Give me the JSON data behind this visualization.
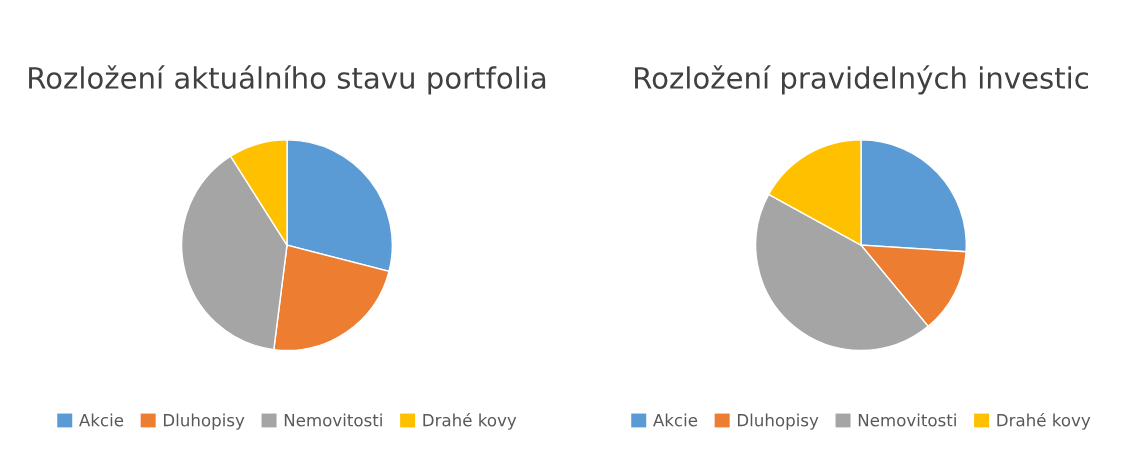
{
  "chart_data": [
    {
      "type": "pie",
      "title": "Rozložení aktuálního stavu portfolia",
      "categories": [
        "Akcie",
        "Dluhopisy",
        "Nemovitosti",
        "Drahé kovy"
      ],
      "values": [
        29,
        23,
        39,
        9
      ],
      "colors": [
        "#5b9bd5",
        "#ed7d31",
        "#a5a5a5",
        "#ffc000"
      ],
      "legend": "bottom"
    },
    {
      "type": "pie",
      "title": "Rozložení pravidelných investic",
      "categories": [
        "Akcie",
        "Dluhopisy",
        "Nemovitosti",
        "Drahé kovy"
      ],
      "values": [
        26,
        13,
        44,
        17
      ],
      "colors": [
        "#5b9bd5",
        "#ed7d31",
        "#a5a5a5",
        "#ffc000"
      ],
      "legend": "bottom"
    }
  ]
}
